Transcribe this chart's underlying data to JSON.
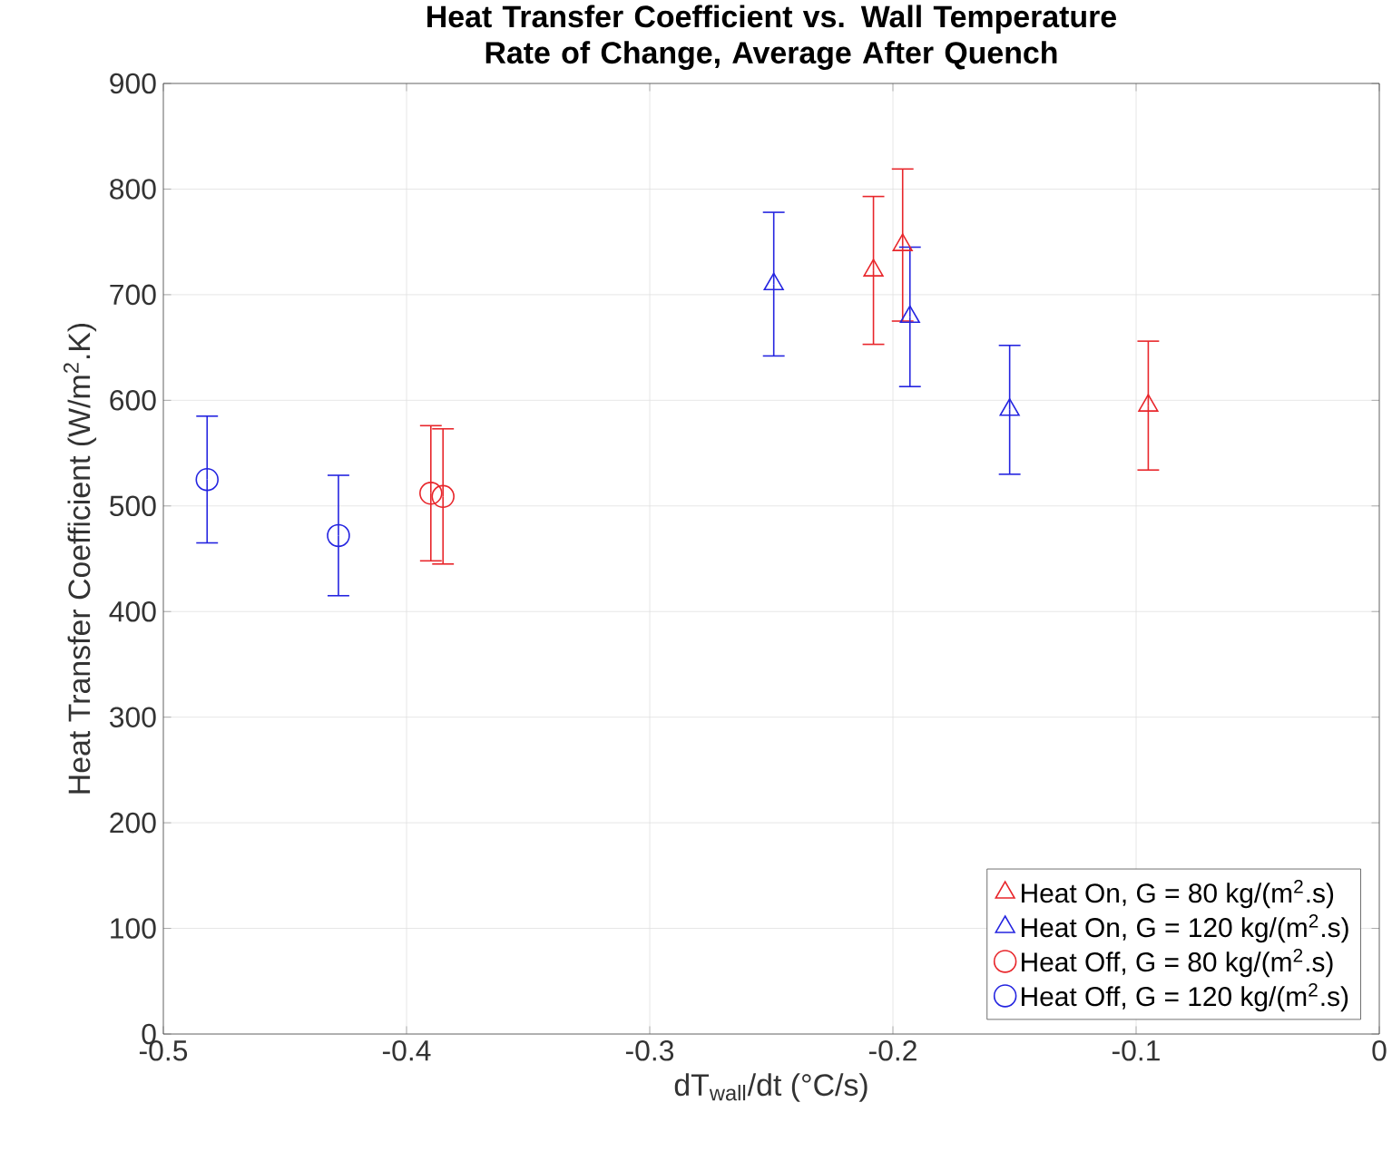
{
  "chart_data": {
    "type": "scatter",
    "title": "Heat Transfer Coefficient vs. Wall Temperature Rate of Change, Average After Quench",
    "xlabel": "dT$_{wall}$/dt (°C/s)",
    "ylabel": "Heat Transfer Coefficient (W/m$^{2}$.K)",
    "xlim": [
      -0.5,
      0
    ],
    "xticks": [
      -0.5,
      -0.4,
      -0.3,
      -0.2,
      -0.1,
      0
    ],
    "ylim": [
      0,
      900
    ],
    "yticks": [
      0,
      100,
      200,
      300,
      400,
      500,
      600,
      700,
      800,
      900
    ],
    "grid": true,
    "legend": "bottom right",
    "series": [
      {
        "name": "Heat On, G = 80 kg/(m$^{2}$.s)",
        "color": "#e8262b",
        "marker": "triangle",
        "x": [
          -0.208,
          -0.196,
          -0.095
        ],
        "values": [
          723,
          747,
          595
        ],
        "errors": [
          70,
          72,
          61
        ]
      },
      {
        "name": "Heat On, G = 120 kg/(m$^{2}$.s)",
        "color": "#2424e0",
        "marker": "triangle",
        "x": [
          -0.249,
          -0.193,
          -0.152
        ],
        "values": [
          710,
          679,
          591
        ],
        "errors": [
          68,
          66,
          61
        ]
      },
      {
        "name": "Heat Off, G = 80 kg/(m$^{2}$.s)",
        "color": "#e8262b",
        "marker": "circle",
        "x": [
          -0.39,
          -0.385
        ],
        "values": [
          512,
          509
        ],
        "errors": [
          64,
          64
        ]
      },
      {
        "name": "Heat Off, G = 120 kg/(m$^{2}$.s)",
        "color": "#2424e0",
        "marker": "circle",
        "x": [
          -0.482,
          -0.428
        ],
        "values": [
          525,
          472
        ],
        "errors": [
          60,
          57
        ]
      }
    ]
  }
}
